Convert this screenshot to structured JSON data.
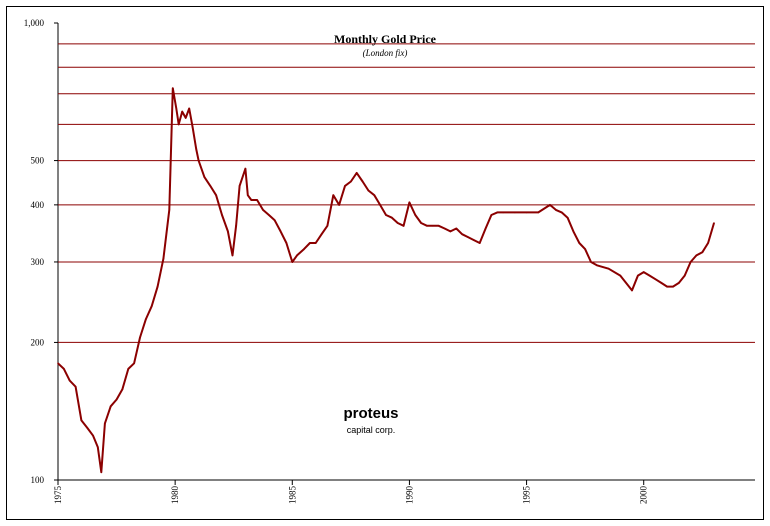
{
  "chart_data": {
    "type": "line",
    "title": "Monthly Gold Price",
    "subtitle": "(London fix)",
    "xlabel": "",
    "ylabel": "",
    "y_scale": "log",
    "ylim": [
      100,
      1000
    ],
    "xlim": [
      1975,
      2004.75
    ],
    "y_ticks": [
      100,
      200,
      300,
      400,
      500,
      1000
    ],
    "y_tick_labels": [
      "100",
      "200",
      "300",
      "400",
      "500",
      "1,000"
    ],
    "y_gridlines": [
      200,
      300,
      400,
      500,
      600,
      700,
      800,
      900
    ],
    "x_ticks": [
      1975,
      1980,
      1985,
      1990,
      1995,
      2000
    ],
    "x_tick_labels": [
      "1975",
      "1980",
      "1985",
      "1990",
      "1995",
      "2000"
    ],
    "grid": true,
    "legend": "none",
    "series": [
      {
        "color": "#8b0000",
        "x": [
          1975,
          1975.25,
          1975.5,
          1975.75,
          1976,
          1976.25,
          1976.5,
          1976.7,
          1976.85,
          1977,
          1977.25,
          1977.5,
          1977.75,
          1978,
          1978.25,
          1978.5,
          1978.75,
          1979,
          1979.25,
          1979.5,
          1979.75,
          1979.9,
          1980.05,
          1980.15,
          1980.3,
          1980.45,
          1980.6,
          1980.75,
          1980.9,
          1981,
          1981.25,
          1981.5,
          1981.75,
          1982,
          1982.25,
          1982.45,
          1982.6,
          1982.75,
          1983,
          1983.1,
          1983.25,
          1983.5,
          1983.75,
          1984,
          1984.25,
          1984.5,
          1984.75,
          1985,
          1985.2,
          1985.5,
          1985.75,
          1986,
          1986.25,
          1986.5,
          1986.75,
          1987,
          1987.25,
          1987.5,
          1987.75,
          1988,
          1988.25,
          1988.5,
          1988.75,
          1989,
          1989.25,
          1989.5,
          1989.75,
          1990,
          1990.25,
          1990.5,
          1990.75,
          1991,
          1991.25,
          1991.5,
          1991.75,
          1992,
          1992.25,
          1992.5,
          1992.75,
          1993,
          1993.25,
          1993.5,
          1993.75,
          1994,
          1994.5,
          1995,
          1995.5,
          1996,
          1996.25,
          1996.5,
          1996.75,
          1997,
          1997.25,
          1997.5,
          1997.75,
          1998,
          1998.5,
          1999,
          1999.5,
          1999.75,
          2000,
          2000.25,
          2000.5,
          2000.75,
          2001,
          2001.25,
          2001.5,
          2001.75,
          2002,
          2002.25,
          2002.5,
          2002.75,
          2003
        ],
        "y": [
          180,
          175,
          165,
          160,
          135,
          130,
          125,
          118,
          104,
          133,
          145,
          150,
          158,
          175,
          180,
          205,
          225,
          240,
          265,
          305,
          390,
          720,
          650,
          600,
          640,
          620,
          650,
          590,
          530,
          500,
          460,
          440,
          420,
          380,
          350,
          310,
          360,
          440,
          480,
          420,
          410,
          410,
          390,
          380,
          370,
          350,
          330,
          300,
          310,
          320,
          330,
          330,
          345,
          360,
          420,
          400,
          440,
          450,
          470,
          450,
          430,
          420,
          400,
          380,
          375,
          365,
          360,
          405,
          380,
          365,
          360,
          360,
          360,
          355,
          350,
          355,
          345,
          340,
          335,
          330,
          355,
          380,
          385,
          385,
          385,
          385,
          385,
          400,
          390,
          385,
          375,
          350,
          330,
          320,
          300,
          295,
          290,
          280,
          260,
          280,
          285,
          280,
          275,
          270,
          265,
          265,
          270,
          280,
          300,
          310,
          315,
          330,
          365
        ]
      }
    ]
  },
  "branding": {
    "name": "proteus",
    "tagline": "capital corp."
  }
}
